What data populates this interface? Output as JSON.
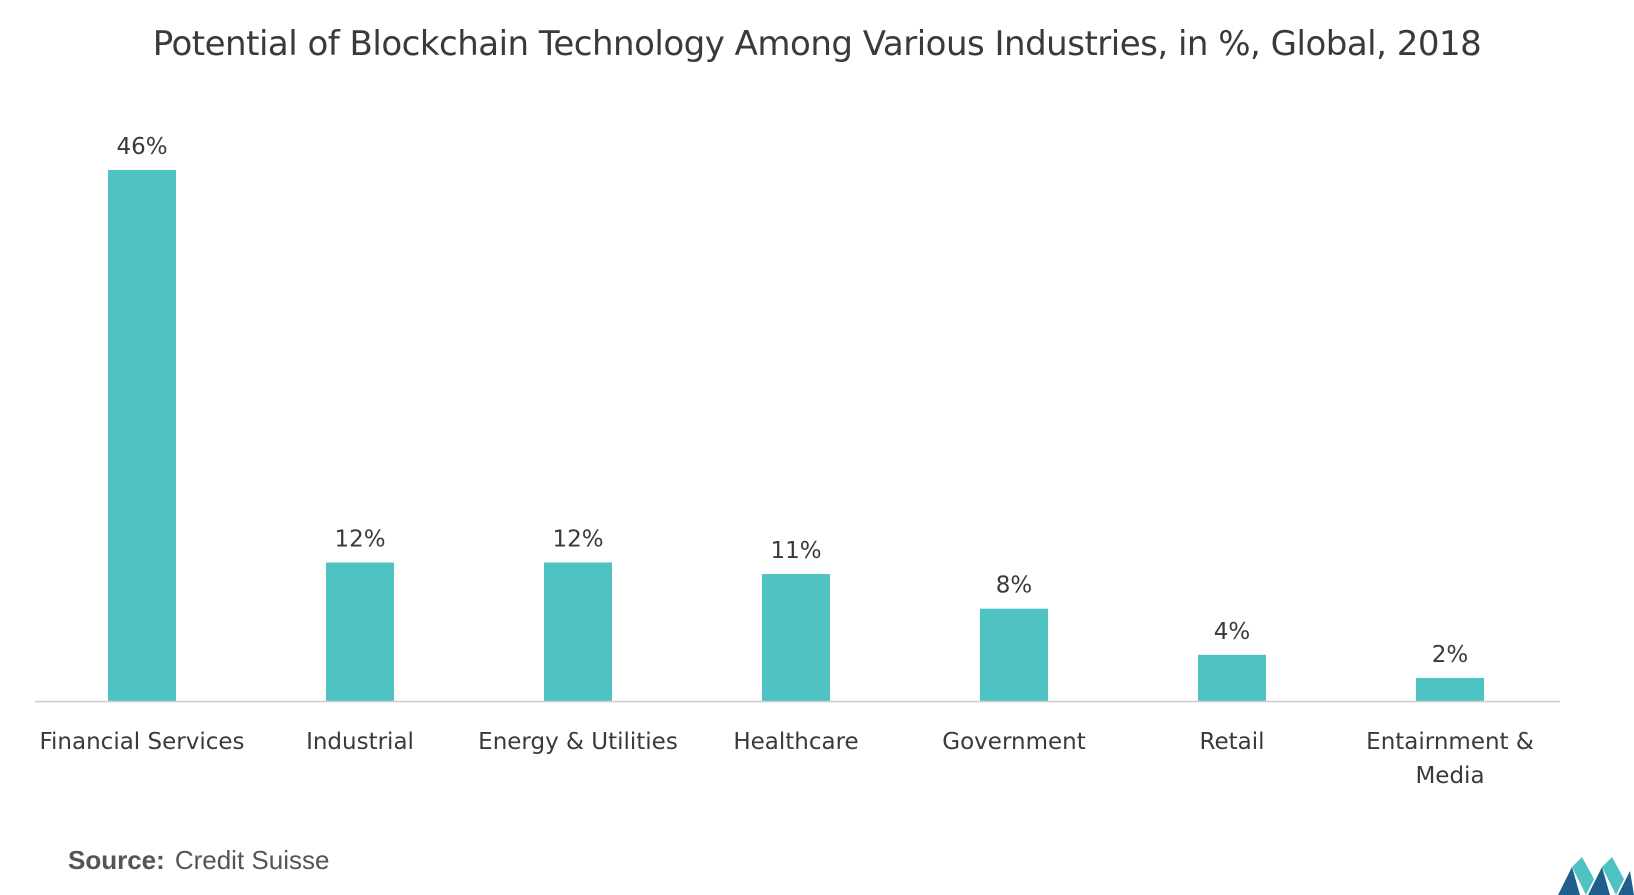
{
  "chart_data": {
    "type": "bar",
    "title": "Potential of Blockchain Technology Among Various Industries, in %, Global, 2018",
    "categories": [
      "Financial Services",
      "Industrial",
      "Energy & Utilities",
      "Healthcare",
      "Government",
      "Retail",
      "Entairnment & Media"
    ],
    "category_lines": [
      [
        "Financial Services"
      ],
      [
        "Industrial"
      ],
      [
        "Energy & Utilities"
      ],
      [
        "Healthcare"
      ],
      [
        "Government"
      ],
      [
        "Retail"
      ],
      [
        "Entairnment &",
        "Media"
      ]
    ],
    "values": [
      46,
      12,
      12,
      11,
      8,
      4,
      2
    ],
    "data_labels": [
      "46%",
      "12%",
      "12%",
      "11%",
      "8%",
      "4%",
      "2%"
    ],
    "xlabel": "",
    "ylabel": "",
    "ylim": [
      0,
      46
    ],
    "grid": false,
    "legend": "none",
    "bar_color": "#4FC3C4"
  },
  "source": {
    "label": "Source:",
    "text": "Credit Suisse"
  },
  "colors": {
    "bar": "#4FC3C4",
    "axis": "#cccccc",
    "text": "#3a3a3a",
    "logo_dark": "#1e5f8c",
    "logo_light": "#4FC3C4"
  }
}
